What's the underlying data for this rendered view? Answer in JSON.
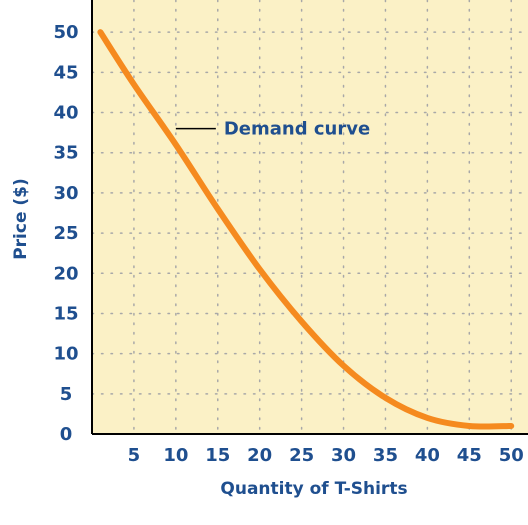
{
  "chart_data": {
    "type": "line",
    "title": "",
    "xlabel": "Quantity of T-Shirts",
    "ylabel": "Price ($)",
    "xlim": [
      0,
      52
    ],
    "ylim": [
      0,
      54
    ],
    "xticks": [
      5,
      10,
      15,
      20,
      25,
      30,
      35,
      40,
      45,
      50
    ],
    "yticks": [
      0,
      5,
      10,
      15,
      20,
      25,
      30,
      35,
      40,
      45,
      50
    ],
    "grid": true,
    "series": [
      {
        "name": "Demand curve",
        "x": [
          1,
          5,
          10,
          15,
          20,
          25,
          30,
          35,
          40,
          45,
          50
        ],
        "y": [
          50,
          43.5,
          36,
          28,
          20.5,
          14,
          8.5,
          4.5,
          2,
          1,
          1
        ]
      }
    ],
    "annotations": [
      {
        "text": "Demand curve",
        "x": 10,
        "y": 38
      }
    ],
    "colors": {
      "background": "#fbf1c6",
      "axis": "#000000",
      "grid": "#a8a8a8",
      "text": "#1f4f8f",
      "curve": "#f58a1f"
    }
  }
}
